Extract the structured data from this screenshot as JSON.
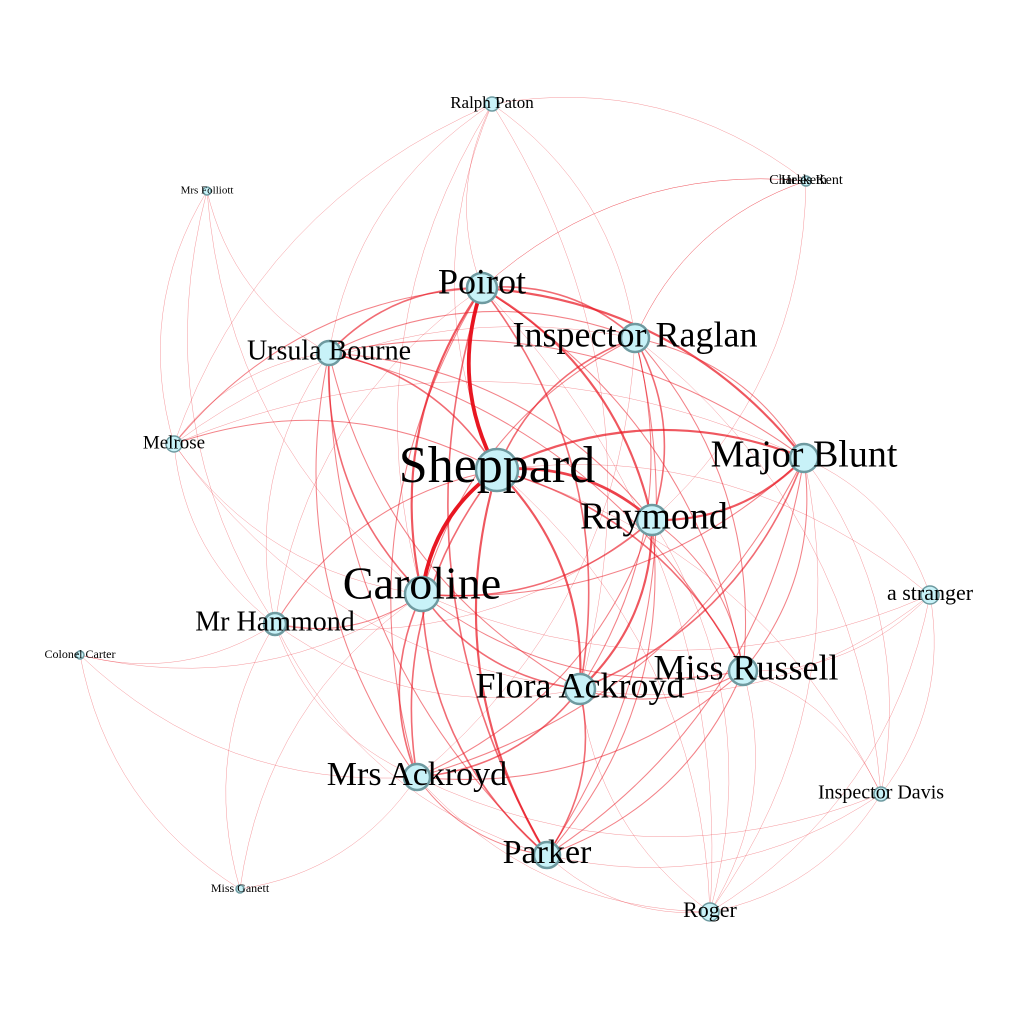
{
  "graph": {
    "colors": {
      "edge": "#e8121e",
      "node_fill": "#c8f2f8",
      "node_stroke": "#6e9aa0",
      "background": "#ffffff",
      "label": "#000000"
    },
    "nodes": [
      {
        "id": "sheppard",
        "label": "Sheppard"
      },
      {
        "id": "caroline",
        "label": "Caroline"
      },
      {
        "id": "poirot",
        "label": "Poirot"
      },
      {
        "id": "raglan",
        "label": "Inspector Raglan"
      },
      {
        "id": "blunt",
        "label": "Major Blunt"
      },
      {
        "id": "raymond",
        "label": "Raymond"
      },
      {
        "id": "ursula",
        "label": "Ursula Bourne"
      },
      {
        "id": "flora",
        "label": "Flora Ackroyd"
      },
      {
        "id": "russell",
        "label": "Miss Russell"
      },
      {
        "id": "mrsackroyd",
        "label": "Mrs Ackroyd"
      },
      {
        "id": "parker",
        "label": "Parker"
      },
      {
        "id": "hammond",
        "label": "Mr Hammond"
      },
      {
        "id": "melrose",
        "label": "Melrose"
      },
      {
        "id": "ralph",
        "label": "Ralph Paton"
      },
      {
        "id": "charleskent",
        "label": "Charles Kent"
      },
      {
        "id": "hesketh",
        "label": "Hesketh"
      },
      {
        "id": "folliott",
        "label": "Mrs Folliott"
      },
      {
        "id": "stranger",
        "label": "a stranger"
      },
      {
        "id": "davis",
        "label": "Inspector Davis"
      },
      {
        "id": "roger",
        "label": "Roger"
      },
      {
        "id": "carter",
        "label": "Colonel Carter"
      },
      {
        "id": "ganett",
        "label": "Miss Ganett"
      }
    ],
    "edges": [
      [
        "sheppard",
        "caroline",
        7
      ],
      [
        "sheppard",
        "poirot",
        7
      ],
      [
        "sheppard",
        "raymond",
        5
      ],
      [
        "sheppard",
        "blunt",
        4
      ],
      [
        "sheppard",
        "raglan",
        3
      ],
      [
        "sheppard",
        "flora",
        4
      ],
      [
        "sheppard",
        "ursula",
        3
      ],
      [
        "sheppard",
        "parker",
        4
      ],
      [
        "sheppard",
        "mrsackroyd",
        3
      ],
      [
        "sheppard",
        "russell",
        3
      ],
      [
        "sheppard",
        "hammond",
        2
      ],
      [
        "sheppard",
        "melrose",
        2
      ],
      [
        "sheppard",
        "ralph",
        1
      ],
      [
        "sheppard",
        "stranger",
        1
      ],
      [
        "sheppard",
        "davis",
        1
      ],
      [
        "sheppard",
        "roger",
        1
      ],
      [
        "caroline",
        "poirot",
        4
      ],
      [
        "caroline",
        "ursula",
        3
      ],
      [
        "caroline",
        "raymond",
        3
      ],
      [
        "caroline",
        "flora",
        3
      ],
      [
        "caroline",
        "mrsackroyd",
        3
      ],
      [
        "caroline",
        "parker",
        3
      ],
      [
        "caroline",
        "raglan",
        2
      ],
      [
        "caroline",
        "blunt",
        2
      ],
      [
        "caroline",
        "russell",
        2
      ],
      [
        "caroline",
        "hammond",
        2
      ],
      [
        "caroline",
        "melrose",
        1
      ],
      [
        "caroline",
        "carter",
        1
      ],
      [
        "caroline",
        "ganett",
        1
      ],
      [
        "caroline",
        "folliott",
        1
      ],
      [
        "caroline",
        "ralph",
        1
      ],
      [
        "caroline",
        "stranger",
        1
      ],
      [
        "poirot",
        "raglan",
        3
      ],
      [
        "poirot",
        "raymond",
        4
      ],
      [
        "poirot",
        "blunt",
        4
      ],
      [
        "poirot",
        "ursula",
        3
      ],
      [
        "poirot",
        "flora",
        3
      ],
      [
        "poirot",
        "russell",
        2
      ],
      [
        "poirot",
        "mrsackroyd",
        2
      ],
      [
        "poirot",
        "parker",
        3
      ],
      [
        "poirot",
        "ralph",
        1
      ],
      [
        "poirot",
        "melrose",
        2
      ],
      [
        "poirot",
        "charleskent",
        1
      ],
      [
        "poirot",
        "hammond",
        1
      ],
      [
        "poirot",
        "roger",
        1
      ],
      [
        "raglan",
        "raymond",
        3
      ],
      [
        "raglan",
        "blunt",
        2
      ],
      [
        "raglan",
        "flora",
        2
      ],
      [
        "raglan",
        "parker",
        2
      ],
      [
        "raglan",
        "russell",
        2
      ],
      [
        "raglan",
        "ursula",
        2
      ],
      [
        "raglan",
        "hesketh",
        1
      ],
      [
        "raglan",
        "davis",
        1
      ],
      [
        "raglan",
        "melrose",
        1
      ],
      [
        "raglan",
        "mrsackroyd",
        1
      ],
      [
        "blunt",
        "raymond",
        4
      ],
      [
        "blunt",
        "flora",
        3
      ],
      [
        "blunt",
        "russell",
        2
      ],
      [
        "blunt",
        "mrsackroyd",
        2
      ],
      [
        "blunt",
        "parker",
        2
      ],
      [
        "blunt",
        "ursula",
        2
      ],
      [
        "blunt",
        "stranger",
        1
      ],
      [
        "blunt",
        "davis",
        1
      ],
      [
        "blunt",
        "roger",
        1
      ],
      [
        "raymond",
        "flora",
        4
      ],
      [
        "raymond",
        "russell",
        2
      ],
      [
        "raymond",
        "parker",
        2
      ],
      [
        "raymond",
        "mrsackroyd",
        2
      ],
      [
        "raymond",
        "ursula",
        2
      ],
      [
        "raymond",
        "hammond",
        1
      ],
      [
        "raymond",
        "roger",
        1
      ],
      [
        "ursula",
        "flora",
        2
      ],
      [
        "ursula",
        "mrsackroyd",
        2
      ],
      [
        "ursula",
        "russell",
        2
      ],
      [
        "ursula",
        "parker",
        2
      ],
      [
        "ursula",
        "ralph",
        1
      ],
      [
        "ursula",
        "melrose",
        1
      ],
      [
        "ursula",
        "hammond",
        1
      ],
      [
        "flora",
        "russell",
        2
      ],
      [
        "flora",
        "mrsackroyd",
        3
      ],
      [
        "flora",
        "parker",
        3
      ],
      [
        "flora",
        "hammond",
        1
      ],
      [
        "flora",
        "roger",
        1
      ],
      [
        "flora",
        "stranger",
        1
      ],
      [
        "flora",
        "melrose",
        1
      ],
      [
        "russell",
        "parker",
        2
      ],
      [
        "russell",
        "mrsackroyd",
        2
      ],
      [
        "russell",
        "roger",
        1
      ],
      [
        "russell",
        "davis",
        1
      ],
      [
        "russell",
        "stranger",
        1
      ],
      [
        "mrsackroyd",
        "parker",
        2
      ],
      [
        "mrsackroyd",
        "hammond",
        1
      ],
      [
        "mrsackroyd",
        "roger",
        1
      ],
      [
        "mrsackroyd",
        "davis",
        1
      ],
      [
        "parker",
        "roger",
        1
      ],
      [
        "parker",
        "davis",
        1
      ],
      [
        "parker",
        "hammond",
        1
      ],
      [
        "melrose",
        "hammond",
        1
      ],
      [
        "melrose",
        "ralph",
        1
      ],
      [
        "melrose",
        "blunt",
        1
      ],
      [
        "ralph",
        "raglan",
        1
      ],
      [
        "ralph",
        "flora",
        1
      ],
      [
        "ralph",
        "charleskent",
        1
      ],
      [
        "charleskent",
        "raglan",
        1
      ],
      [
        "hesketh",
        "poirot",
        1
      ],
      [
        "charleskent",
        "raymond",
        1
      ],
      [
        "folliott",
        "melrose",
        1
      ],
      [
        "folliott",
        "hammond",
        1
      ],
      [
        "folliott",
        "ursula",
        1
      ],
      [
        "carter",
        "hammond",
        1
      ],
      [
        "carter",
        "ganett",
        1
      ],
      [
        "carter",
        "mrsackroyd",
        1
      ],
      [
        "ganett",
        "hammond",
        1
      ],
      [
        "ganett",
        "mrsackroyd",
        1
      ],
      [
        "stranger",
        "davis",
        1
      ],
      [
        "stranger",
        "roger",
        1
      ],
      [
        "davis",
        "roger",
        1
      ]
    ]
  }
}
